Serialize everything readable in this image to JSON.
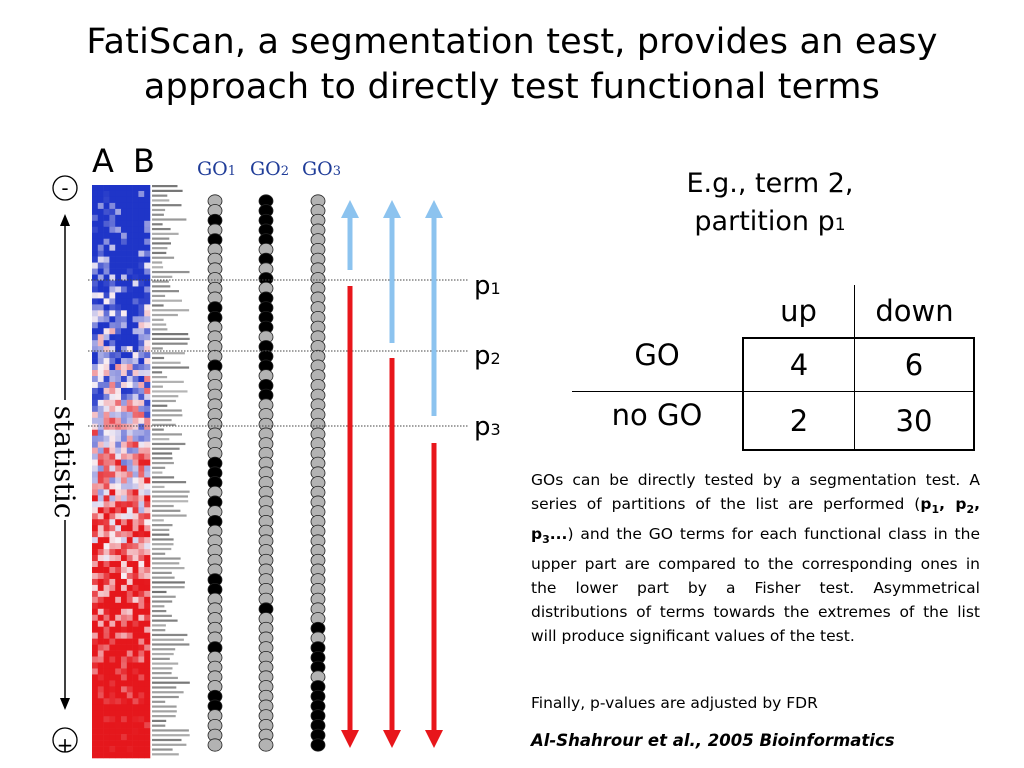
{
  "title": {
    "line1": "FatiScan, a segmentation test, provides an easy",
    "line2": "approach to directly test functional terms"
  },
  "figure": {
    "column_labels": {
      "a": "A",
      "b": "B"
    },
    "go_labels": [
      {
        "base": "GO",
        "sub": "1"
      },
      {
        "base": "GO",
        "sub": "2"
      },
      {
        "base": "GO",
        "sub": "3"
      }
    ],
    "axis": {
      "top_sign": "-",
      "bottom_sign": "+",
      "label": "statistic"
    },
    "partitions": [
      {
        "base": "p",
        "sub": "1"
      },
      {
        "base": "p",
        "sub": "2"
      },
      {
        "base": "p",
        "sub": "3"
      }
    ],
    "colors": {
      "heatmap_high": "#e5171c",
      "heatmap_low": "#1f35c8",
      "go_filled": "#000000",
      "go_empty": "#b3b3b3",
      "arrow_upper": "#8cc3ef",
      "arrow_lower": "#e8161b",
      "go_label": "#1f3c98"
    },
    "go_columns": {
      "go1": [
        0,
        0,
        1,
        0,
        1,
        0,
        0,
        0,
        0,
        0,
        0,
        1,
        1,
        0,
        0,
        0,
        0,
        1,
        0,
        0,
        0,
        0,
        0,
        0,
        0,
        0,
        0,
        1,
        1,
        1,
        0,
        1,
        0,
        1,
        0,
        0,
        0,
        0,
        0,
        1,
        1,
        0,
        0,
        0,
        0,
        0,
        1,
        0,
        0,
        0,
        0,
        1,
        1,
        0,
        0,
        0,
        0
      ],
      "go2": [
        1,
        1,
        1,
        1,
        1,
        0,
        1,
        0,
        1,
        0,
        1,
        1,
        1,
        1,
        0,
        1,
        1,
        1,
        0,
        1,
        1,
        0,
        0,
        0,
        0,
        0,
        0,
        0,
        0,
        0,
        0,
        0,
        0,
        0,
        0,
        0,
        0,
        0,
        0,
        0,
        0,
        0,
        1,
        0,
        0,
        0,
        0,
        0,
        0,
        0,
        0,
        0,
        0,
        0,
        0,
        0,
        0
      ],
      "go3": [
        0,
        0,
        0,
        0,
        0,
        0,
        0,
        0,
        0,
        0,
        0,
        0,
        0,
        0,
        0,
        0,
        0,
        0,
        0,
        0,
        0,
        0,
        0,
        0,
        0,
        0,
        0,
        0,
        0,
        0,
        0,
        0,
        0,
        0,
        0,
        0,
        0,
        0,
        0,
        0,
        0,
        0,
        0,
        0,
        1,
        0,
        1,
        1,
        1,
        0,
        1,
        1,
        1,
        1,
        1,
        1,
        1
      ]
    }
  },
  "example": {
    "line1": "E.g., term 2,",
    "line2_base": "partition p",
    "line2_sub": "1"
  },
  "contingency": {
    "col_up": "up",
    "col_down": "down",
    "row_go": "GO",
    "row_nogo": "no GO",
    "go_up": "4",
    "go_down": "6",
    "nogo_up": "2",
    "nogo_down": "30"
  },
  "description": {
    "part1": "GOs can be directly tested by a segmentation test. A series of partitions of the list are performed (",
    "p1": "p",
    "s1": "1",
    "sep1": ", p",
    "s2": "2",
    "sep2": ", p",
    "s3": "3",
    "dots": "...",
    "part2": ") and the GO terms for each functional class in the upper part are compared to the corresponding ones in the lower part by a Fisher test. Asymmetrical distributions of terms towards the extremes of the list will produce significant values of  the test."
  },
  "fdr": "Finally, p-values are adjusted by FDR",
  "citation": "Al-Shahrour et al., 2005 Bioinformatics"
}
